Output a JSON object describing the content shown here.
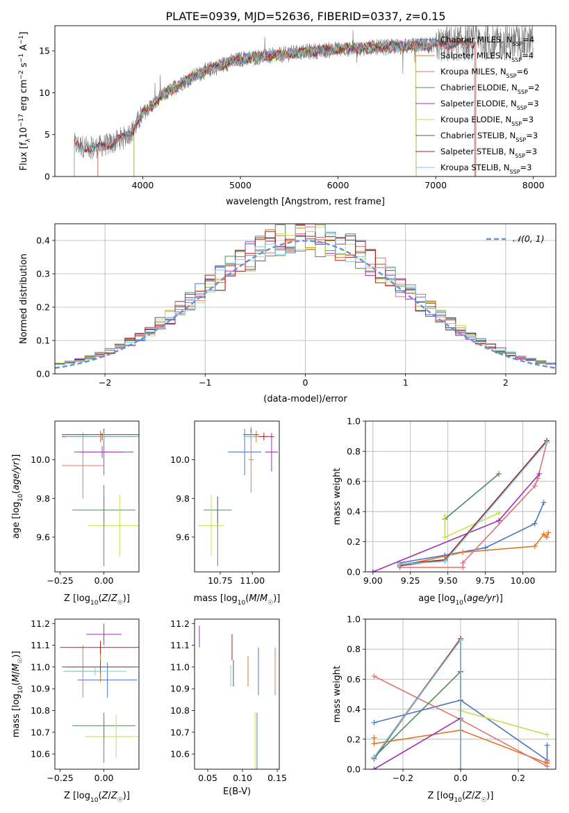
{
  "title": "PLATE=0939, MJD=52636, FIBERID=0337, z=0.15",
  "palette": {
    "Chabrier MILES": "#4a73c8",
    "Salpeter MILES": "#dd7722",
    "Kroupa MILES": "#e07070",
    "Chabrier ELODIE": "#4f8a5c",
    "Salpeter ELODIE": "#9b2fb8",
    "Kroupa ELODIE": "#c6e04a",
    "Chabrier STELIB": "#555555",
    "Salpeter STELIB": "#b01c1c",
    "Kroupa STELIB": "#79ccdc",
    "gauss": "#6a8fdd",
    "data": "#777777",
    "grid": "#b0b0b0"
  },
  "chart_data": [
    {
      "id": "spectrum",
      "type": "line",
      "xlabel": "wavelength [Angstrom, rest frame]",
      "ylabel": "Flux [fλ10⁻¹⁷ erg cm⁻² s⁻¹ A⁻¹]",
      "xlim": [
        3100,
        8230
      ],
      "ylim": [
        0,
        18
      ],
      "xticks": [
        4000,
        5000,
        6000,
        7000,
        8000
      ],
      "yticks": [
        0,
        5,
        10,
        15
      ],
      "grid": false,
      "legend_position": "top-right",
      "legend": [
        {
          "label": "Chabrier MILES, N",
          "sub": "SSP",
          "tail": "=4",
          "color": "#4a73c8"
        },
        {
          "label": "Salpeter MILES, N",
          "sub": "SSP",
          "tail": "=4",
          "color": "#dd7722"
        },
        {
          "label": "Kroupa MILES, N",
          "sub": "SSP",
          "tail": "=6",
          "color": "#e07070"
        },
        {
          "label": "Chabrier ELODIE, N",
          "sub": "SSP",
          "tail": "=2",
          "color": "#4f8a5c"
        },
        {
          "label": "Salpeter ELODIE, N",
          "sub": "SSP",
          "tail": "=3",
          "color": "#9b2fb8"
        },
        {
          "label": "Kroupa ELODIE, N",
          "sub": "SSP",
          "tail": "=3",
          "color": "#c6e04a"
        },
        {
          "label": "Chabrier STELIB, N",
          "sub": "SSP",
          "tail": "=3",
          "color": "#555555"
        },
        {
          "label": "Salpeter STELIB, N",
          "sub": "SSP",
          "tail": "=3",
          "color": "#b01c1c"
        },
        {
          "label": "Kroupa STELIB, N",
          "sub": "SSP",
          "tail": "=3",
          "color": "#79ccdc"
        }
      ],
      "continuum": {
        "x": [
          3300,
          3500,
          3700,
          3900,
          4000,
          4200,
          4400,
          4600,
          4800,
          5000,
          5200,
          5400,
          5600,
          5800,
          6000,
          6200,
          6400,
          6600,
          6800,
          7000,
          7200,
          7400
        ],
        "y": [
          3.8,
          3.4,
          4.0,
          5.5,
          7.5,
          9.6,
          11.2,
          12.4,
          13.3,
          14.0,
          14.3,
          14.5,
          14.8,
          15.0,
          15.2,
          15.3,
          15.4,
          15.5,
          15.6,
          15.7,
          15.9,
          16.0
        ]
      },
      "model_ranges": {
        "MILES": [
          3540,
          7410
        ],
        "ELODIE": [
          3910,
          6800
        ],
        "STELIB": [
          3300,
          7400
        ]
      }
    },
    {
      "id": "residuals",
      "type": "histogram",
      "xlabel": "(data-model)/error",
      "ylabel": "Normed distribution",
      "xlim": [
        -2.5,
        2.5
      ],
      "ylim": [
        0,
        0.45
      ],
      "xticks": [
        -2,
        -1,
        0,
        1,
        2
      ],
      "yticks": [
        0.0,
        0.1,
        0.2,
        0.3,
        0.4
      ],
      "grid": true,
      "bin_width": 0.1,
      "legend_position": "top-right",
      "legend": [
        {
          "label": "𝒩(0, 1)",
          "color": "#6a8fdd"
        }
      ],
      "reference": {
        "name": "N(0,1)",
        "mean": 0,
        "sigma": 1
      }
    },
    {
      "id": "age-vs-Z",
      "type": "scatter",
      "xlabel": "Z [log10(Z/Z☉)]",
      "ylabel": "age  [log10(age/yr)]",
      "xlim": [
        -0.28,
        0.2
      ],
      "ylim": [
        9.42,
        10.2
      ],
      "xticks": [
        -0.25,
        0.0
      ],
      "yticks": [
        9.6,
        9.8,
        10.0
      ],
      "grid": false,
      "points": [
        {
          "model": "Chabrier MILES",
          "x": 0.0,
          "y": 10.04,
          "xerr": 0.17,
          "yerr": 0.12
        },
        {
          "model": "Salpeter MILES",
          "x": -0.02,
          "y": 10.12,
          "xerr": 0.2,
          "yerr": 0.03
        },
        {
          "model": "Kroupa MILES",
          "x": -0.12,
          "y": 9.97,
          "xerr": 0.12,
          "yerr": 0.17
        },
        {
          "model": "Chabrier ELODIE",
          "x": 0.0,
          "y": 9.74,
          "xerr": 0.18,
          "yerr": 0.07
        },
        {
          "model": "Salpeter ELODIE",
          "x": -0.01,
          "y": 10.04,
          "xerr": 0.13,
          "yerr": 0.03
        },
        {
          "model": "Kroupa ELODIE",
          "x": 0.09,
          "y": 9.66,
          "xerr": 0.18,
          "yerr": 0.16
        },
        {
          "model": "Chabrier STELIB",
          "x": 0.0,
          "y": 10.13,
          "xerr": 0.24,
          "yerr": 0.03
        },
        {
          "model": "Salpeter STELIB",
          "x": -0.01,
          "y": 10.12,
          "xerr": 0.23,
          "yerr": 0.02
        },
        {
          "model": "Kroupa STELIB",
          "x": 0.0,
          "y": 10.12,
          "xerr": 0.22,
          "yerr": 0.02
        },
        {
          "model": "Chabrier ELODIE",
          "x": 0.0,
          "y": 9.66,
          "xerr": 0.0,
          "yerr": 0.21
        }
      ]
    },
    {
      "id": "age-vs-mass",
      "type": "scatter",
      "xlabel": "mass [log10(M/M☉)]",
      "ylabel": "",
      "xlim": [
        10.55,
        11.21
      ],
      "ylim": [
        9.42,
        10.2
      ],
      "xticks": [
        10.75,
        11.0
      ],
      "yticks": [
        9.6,
        9.8,
        10.0
      ],
      "grid": false,
      "points": [
        {
          "model": "Chabrier MILES",
          "x": 10.94,
          "y": 10.04,
          "xerr": 0.13,
          "yerr": 0.12
        },
        {
          "model": "Salpeter MILES",
          "x": 11.03,
          "y": 10.12,
          "xerr": 0.09,
          "yerr": 0.03
        },
        {
          "model": "Kroupa MILES",
          "x": 10.99,
          "y": 10.0,
          "xerr": 0.02,
          "yerr": 0.17
        },
        {
          "model": "Chabrier ELODIE",
          "x": 10.73,
          "y": 9.74,
          "xerr": 0.11,
          "yerr": 0.07
        },
        {
          "model": "Salpeter ELODIE",
          "x": 11.15,
          "y": 10.04,
          "xerr": 0.05,
          "yerr": 0.1
        },
        {
          "model": "Kroupa ELODIE",
          "x": 10.68,
          "y": 9.66,
          "xerr": 0.1,
          "yerr": 0.16
        },
        {
          "model": "Chabrier STELIB",
          "x": 10.99,
          "y": 10.13,
          "xerr": 0.06,
          "yerr": 0.03
        },
        {
          "model": "Salpeter STELIB",
          "x": 11.09,
          "y": 10.12,
          "xerr": 0.08,
          "yerr": 0.02
        },
        {
          "model": "Kroupa STELIB",
          "x": 10.99,
          "y": 10.12,
          "xerr": 0.06,
          "yerr": 0.02
        },
        {
          "model": "Chabrier ELODIE",
          "x": 10.73,
          "y": 9.63,
          "xerr": 0.0,
          "yerr": 0.18
        }
      ]
    },
    {
      "id": "massweight-vs-age",
      "type": "line",
      "xlabel": "age  [log10(age/yr)]",
      "ylabel": "mass weight",
      "xlim": [
        8.95,
        10.22
      ],
      "ylim": [
        0.0,
        1.0
      ],
      "xticks": [
        9.0,
        9.25,
        9.5,
        9.75,
        10.0
      ],
      "yticks": [
        0.0,
        0.2,
        0.4,
        0.6,
        0.8,
        1.0
      ],
      "grid": true,
      "series": [
        {
          "model": "Chabrier MILES",
          "x": [
            9.18,
            9.48,
            9.75,
            10.08,
            10.14
          ],
          "y": [
            0.06,
            0.11,
            0.16,
            0.32,
            0.46
          ]
        },
        {
          "model": "Salpeter MILES",
          "x": [
            9.18,
            9.6,
            10.08,
            10.14,
            10.16,
            10.17
          ],
          "y": [
            0.04,
            0.13,
            0.17,
            0.25,
            0.23,
            0.26
          ]
        },
        {
          "model": "Kroupa MILES",
          "x": [
            9.18,
            9.6,
            9.6,
            10.08,
            10.1,
            10.16
          ],
          "y": [
            0.03,
            0.03,
            0.06,
            0.57,
            0.62,
            0.86
          ]
        },
        {
          "model": "Chabrier ELODIE",
          "x": [
            9.48,
            9.84
          ],
          "y": [
            0.35,
            0.65
          ]
        },
        {
          "model": "Salpeter ELODIE",
          "x": [
            9.0,
            9.84,
            10.11
          ],
          "y": [
            0.0,
            0.34,
            0.65
          ]
        },
        {
          "model": "Kroupa ELODIE",
          "x": [
            9.48,
            9.48,
            9.84
          ],
          "y": [
            0.37,
            0.23,
            0.39
          ]
        },
        {
          "model": "Chabrier STELIB",
          "x": [
            9.18,
            9.48,
            10.16
          ],
          "y": [
            0.04,
            0.08,
            0.87
          ]
        },
        {
          "model": "Salpeter STELIB",
          "x": [
            9.18,
            9.48,
            10.16
          ],
          "y": [
            0.05,
            0.08,
            0.87
          ]
        },
        {
          "model": "Kroupa STELIB",
          "x": [
            9.18,
            9.48,
            10.16
          ],
          "y": [
            0.05,
            0.07,
            0.86
          ]
        }
      ]
    },
    {
      "id": "mass-vs-Z",
      "type": "scatter",
      "xlabel": "Z [log10(Z/Z☉)]",
      "ylabel": "mass [log10(M/M☉)]",
      "xlim": [
        -0.28,
        0.2
      ],
      "ylim": [
        10.53,
        11.22
      ],
      "xticks": [
        -0.25,
        0.0
      ],
      "yticks": [
        10.6,
        10.7,
        10.8,
        10.9,
        11.0,
        11.1,
        11.2
      ],
      "grid": false,
      "points": [
        {
          "model": "Chabrier MILES",
          "x": 0.02,
          "y": 10.94,
          "xerr": 0.17,
          "yerr": 0.08
        },
        {
          "model": "Salpeter MILES",
          "x": -0.02,
          "y": 11.0,
          "xerr": 0.2,
          "yerr": 0.07
        },
        {
          "model": "Kroupa MILES",
          "x": -0.12,
          "y": 10.98,
          "xerr": 0.11,
          "yerr": 0.12
        },
        {
          "model": "Chabrier ELODIE",
          "x": 0.0,
          "y": 10.73,
          "xerr": 0.18,
          "yerr": 0.06
        },
        {
          "model": "Salpeter ELODIE",
          "x": 0.0,
          "y": 11.15,
          "xerr": 0.1,
          "yerr": 0.05
        },
        {
          "model": "Kroupa ELODIE",
          "x": 0.07,
          "y": 10.68,
          "xerr": 0.18,
          "yerr": 0.1
        },
        {
          "model": "Chabrier STELIB",
          "x": -0.02,
          "y": 11.0,
          "xerr": 0.22,
          "yerr": 0.03
        },
        {
          "model": "Salpeter STELIB",
          "x": -0.02,
          "y": 11.09,
          "xerr": 0.23,
          "yerr": 0.03
        },
        {
          "model": "Kroupa STELIB",
          "x": -0.05,
          "y": 10.98,
          "xerr": 0.18,
          "yerr": 0.02
        },
        {
          "model": "Chabrier ELODIE",
          "x": 0.0,
          "y": 10.66,
          "xerr": 0.0,
          "yerr": 0.1
        }
      ]
    },
    {
      "id": "mass-vs-ebv",
      "type": "scatter",
      "xlabel": "E(B-V)",
      "ylabel": "",
      "xlim": [
        0.031,
        0.153
      ],
      "ylim": [
        10.53,
        11.22
      ],
      "xticks": [
        0.05,
        0.1,
        0.15
      ],
      "yticks": [
        10.6,
        10.7,
        10.8,
        10.9,
        11.0,
        11.1,
        11.2
      ],
      "grid": false,
      "points": [
        {
          "model": "Chabrier MILES",
          "x": 0.123,
          "y": 10.98,
          "yerr": 0.11
        },
        {
          "model": "Salpeter MILES",
          "x": 0.108,
          "y": 10.98,
          "yerr": 0.07
        },
        {
          "model": "Kroupa MILES",
          "x": 0.147,
          "y": 10.98,
          "yerr": 0.11
        },
        {
          "model": "Chabrier ELODIE",
          "x": 0.121,
          "y": 10.66,
          "yerr": 0.13
        },
        {
          "model": "Salpeter ELODIE",
          "x": 0.038,
          "y": 11.14,
          "yerr": 0.05
        },
        {
          "model": "Kroupa ELODIE",
          "x": 0.118,
          "y": 10.66,
          "yerr": 0.13
        },
        {
          "model": "Chabrier STELIB",
          "x": 0.087,
          "y": 10.97,
          "yerr": 0.06
        },
        {
          "model": "Salpeter STELIB",
          "x": 0.085,
          "y": 11.09,
          "yerr": 0.06
        },
        {
          "model": "Kroupa STELIB",
          "x": 0.083,
          "y": 10.96,
          "yerr": 0.05
        }
      ]
    },
    {
      "id": "massweight-vs-Z",
      "type": "line",
      "xlabel": "Z [log10(Z/Z☉)]",
      "ylabel": "mass weight",
      "xlim": [
        -0.33,
        0.33
      ],
      "ylim": [
        0.0,
        1.0
      ],
      "xticks": [
        -0.2,
        0.0,
        0.2
      ],
      "yticks": [
        0.0,
        0.2,
        0.4,
        0.6,
        0.8,
        1.0
      ],
      "grid": true,
      "series": [
        {
          "model": "Chabrier MILES",
          "x": [
            -0.3,
            0.0,
            0.3,
            0.3
          ],
          "y": [
            0.31,
            0.46,
            0.06,
            0.16
          ]
        },
        {
          "model": "Salpeter MILES",
          "x": [
            -0.3,
            -0.3,
            0.0,
            0.3,
            0.3
          ],
          "y": [
            0.21,
            0.17,
            0.26,
            0.04,
            0.05
          ]
        },
        {
          "model": "Kroupa MILES",
          "x": [
            -0.3,
            0.0,
            0.3
          ],
          "y": [
            0.62,
            0.33,
            0.02
          ]
        },
        {
          "model": "Chabrier ELODIE",
          "x": [
            -0.3,
            0.0
          ],
          "y": [
            0.08,
            0.65
          ]
        },
        {
          "model": "Salpeter ELODIE",
          "x": [
            -0.3,
            0.0,
            0.0
          ],
          "y": [
            0.0,
            0.34,
            0.65
          ]
        },
        {
          "model": "Kroupa ELODIE",
          "x": [
            0.0,
            0.3
          ],
          "y": [
            0.39,
            0.23
          ]
        },
        {
          "model": "Chabrier STELIB",
          "x": [
            -0.3,
            0.0,
            0.0
          ],
          "y": [
            0.07,
            0.87,
            0.0
          ]
        },
        {
          "model": "Salpeter STELIB",
          "x": [
            -0.3,
            0.0,
            0.0
          ],
          "y": [
            0.08,
            0.87,
            0.0
          ]
        },
        {
          "model": "Kroupa STELIB",
          "x": [
            -0.3,
            0.0,
            0.0
          ],
          "y": [
            0.08,
            0.86,
            0.0
          ]
        }
      ]
    }
  ]
}
